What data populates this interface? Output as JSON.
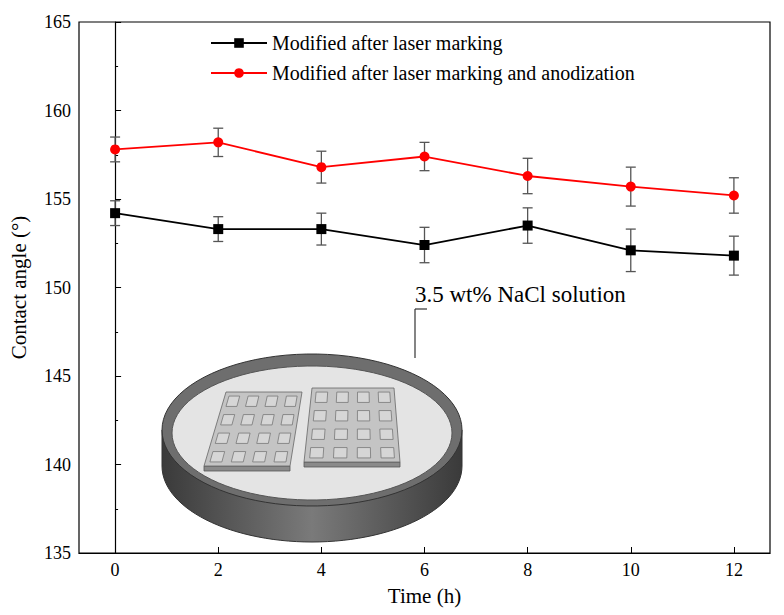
{
  "chart_data": {
    "type": "line",
    "xlabel": "Time (h)",
    "ylabel": "Contact angle (°)",
    "x": [
      0,
      2,
      4,
      6,
      8,
      10,
      12
    ],
    "series": [
      {
        "name": "Modified after laser marking",
        "color": "#000000",
        "marker": "square",
        "values": [
          154.2,
          153.3,
          153.3,
          152.4,
          153.5,
          152.1,
          151.8
        ],
        "errors": [
          0.7,
          0.7,
          0.9,
          1.0,
          1.0,
          1.2,
          1.1
        ]
      },
      {
        "name": "Modified after laser marking and anodization",
        "color": "#ff0000",
        "marker": "circle",
        "values": [
          157.8,
          158.2,
          156.8,
          157.4,
          156.3,
          155.7,
          155.2
        ],
        "errors": [
          0.7,
          0.8,
          0.9,
          0.8,
          1.0,
          1.1,
          1.0
        ]
      }
    ],
    "xlim": [
      -0.7,
      12.7
    ],
    "xticks": [
      0,
      2,
      4,
      6,
      8,
      10,
      12
    ],
    "ylim": [
      135,
      165
    ],
    "yticks": [
      135,
      140,
      145,
      150,
      155,
      160,
      165
    ],
    "grid": false,
    "legend": "top",
    "annotations": [
      {
        "text": "3.5 wt% NaCl solution"
      }
    ]
  }
}
